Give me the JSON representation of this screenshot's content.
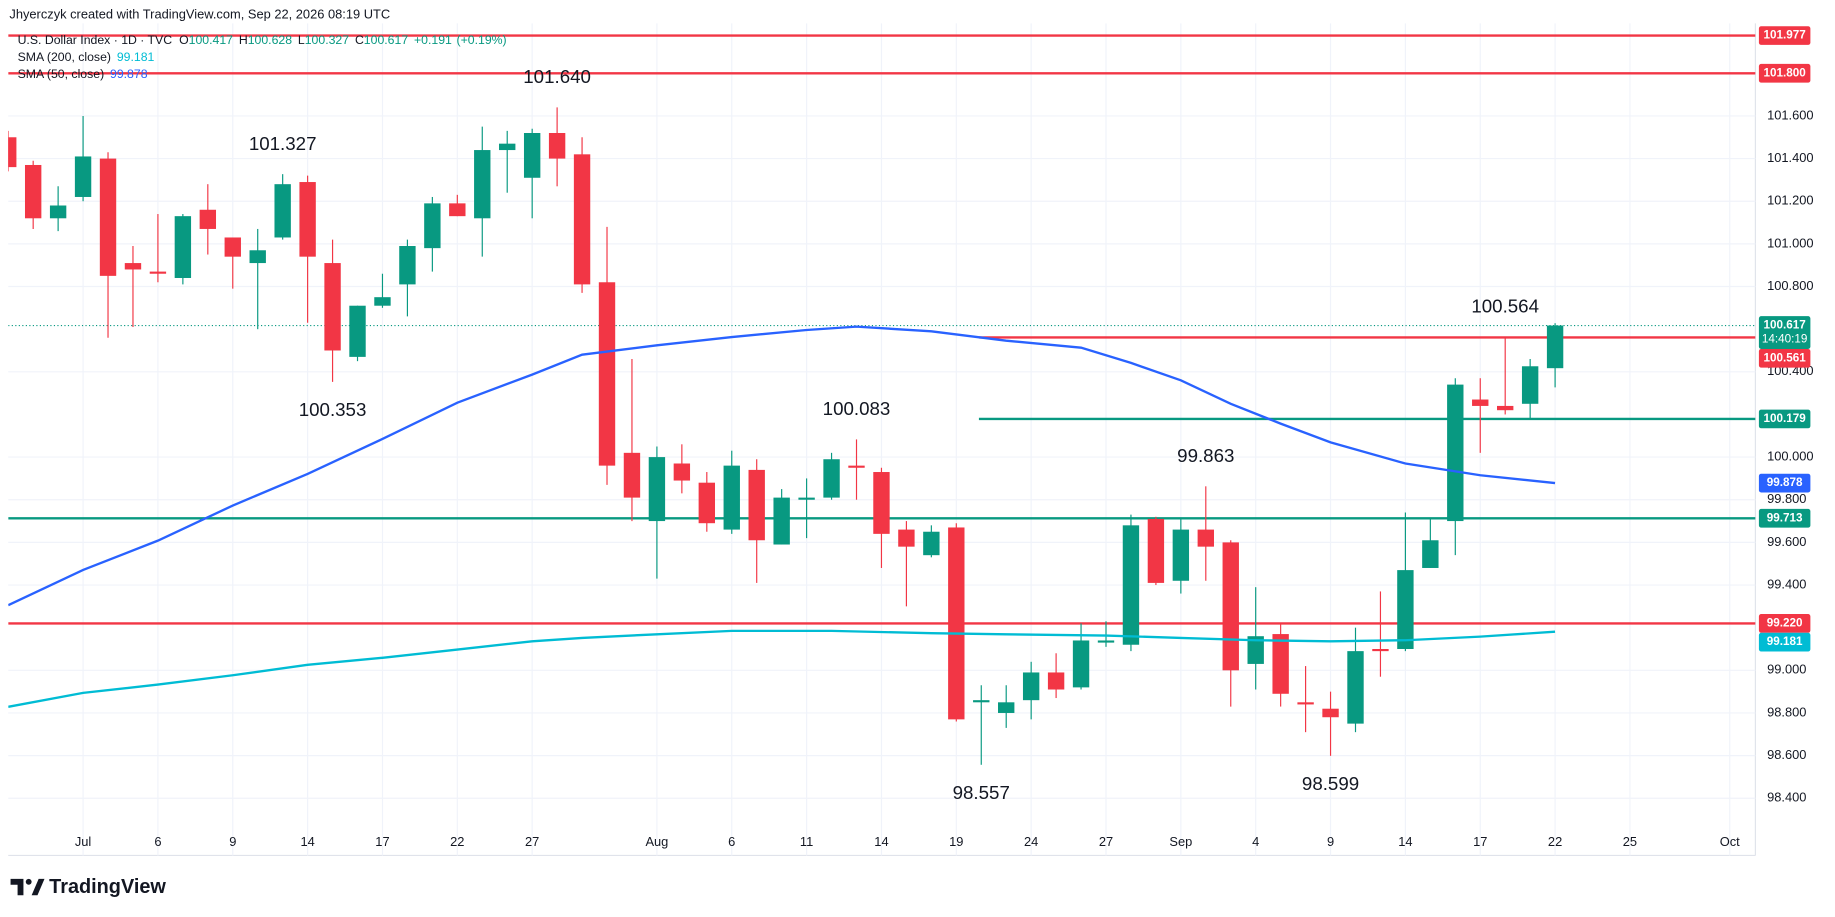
{
  "watermark": "Jhyerczyk created with TradingView.com, Sep 22, 2026 08:19 UTC",
  "brand": "TradingView",
  "chart_data": {
    "type": "candlestick",
    "title": "U.S. Dollar Index · 1D · TVC",
    "ohlc_prefixes": [
      "O",
      "H",
      "L",
      "C"
    ],
    "change": {
      "value": 0.191,
      "label": "+0.191"
    },
    "change_pct": {
      "value": 0.19,
      "label": "(+0.19%)"
    },
    "up_color": "#089981",
    "down_color": "#f23645",
    "x": [
      "2026-06-26",
      "2026-06-29",
      "2026-06-30",
      "2026-07-01",
      "2026-07-02",
      "2026-07-03",
      "2026-07-06",
      "2026-07-07",
      "2026-07-08",
      "2026-07-09",
      "2026-07-10",
      "2026-07-13",
      "2026-07-14",
      "2026-07-15",
      "2026-07-16",
      "2026-07-17",
      "2026-07-20",
      "2026-07-21",
      "2026-07-22",
      "2026-07-23",
      "2026-07-24",
      "2026-07-27",
      "2026-07-28",
      "2026-07-29",
      "2026-07-30",
      "2026-07-31",
      "2026-08-03",
      "2026-08-04",
      "2026-08-05",
      "2026-08-06",
      "2026-08-07",
      "2026-08-10",
      "2026-08-11",
      "2026-08-12",
      "2026-08-13",
      "2026-08-14",
      "2026-08-17",
      "2026-08-18",
      "2026-08-19",
      "2026-08-20",
      "2026-08-21",
      "2026-08-24",
      "2026-08-25",
      "2026-08-26",
      "2026-08-27",
      "2026-08-28",
      "2026-08-31",
      "2026-09-01",
      "2026-09-02",
      "2026-09-03",
      "2026-09-04",
      "2026-09-07",
      "2026-09-08",
      "2026-09-09",
      "2026-09-10",
      "2026-09-11",
      "2026-09-14",
      "2026-09-15",
      "2026-09-16",
      "2026-09-17",
      "2026-09-18",
      "2026-09-21",
      "2026-09-22"
    ],
    "open": [
      101.5,
      101.37,
      101.12,
      101.22,
      101.4,
      100.91,
      100.87,
      100.84,
      101.16,
      101.03,
      100.91,
      101.03,
      101.29,
      100.91,
      100.47,
      100.71,
      100.81,
      100.98,
      101.19,
      101.12,
      101.44,
      101.31,
      101.52,
      101.42,
      100.82,
      100.02,
      99.7,
      99.97,
      99.88,
      99.66,
      99.94,
      99.59,
      99.8,
      99.81,
      99.96,
      99.93,
      99.66,
      99.54,
      99.67,
      98.85,
      98.8,
      98.86,
      98.99,
      98.92,
      99.13,
      99.12,
      99.71,
      99.42,
      99.66,
      99.6,
      99.03,
      99.17,
      98.85,
      98.82,
      98.75,
      99.1,
      99.1,
      99.48,
      99.7,
      100.27,
      100.24,
      100.25,
      100.417
    ],
    "high": [
      101.53,
      101.39,
      101.27,
      101.6,
      101.43,
      100.99,
      101.14,
      101.14,
      101.28,
      101.03,
      101.07,
      101.327,
      101.32,
      101.02,
      100.71,
      100.86,
      101.02,
      101.22,
      101.23,
      101.55,
      101.53,
      101.54,
      101.64,
      101.5,
      101.08,
      100.46,
      100.05,
      100.06,
      99.93,
      100.03,
      99.99,
      99.85,
      99.9,
      100.02,
      100.083,
      99.95,
      99.7,
      99.68,
      99.69,
      98.93,
      98.93,
      99.04,
      99.08,
      99.22,
      99.23,
      99.73,
      99.72,
      99.71,
      99.863,
      99.61,
      99.39,
      99.22,
      99.02,
      98.9,
      99.2,
      99.37,
      99.74,
      99.71,
      100.37,
      100.37,
      100.564,
      100.46,
      100.628
    ],
    "low": [
      101.34,
      101.07,
      101.06,
      101.2,
      100.56,
      100.61,
      100.82,
      100.81,
      100.95,
      100.79,
      100.6,
      101.02,
      100.63,
      100.353,
      100.45,
      100.7,
      100.66,
      100.87,
      101.13,
      100.94,
      101.24,
      101.12,
      101.27,
      100.77,
      99.87,
      99.7,
      99.43,
      99.83,
      99.65,
      99.64,
      99.41,
      99.59,
      99.62,
      99.8,
      99.8,
      99.48,
      99.3,
      99.53,
      98.76,
      98.557,
      98.73,
      98.77,
      98.87,
      98.91,
      99.11,
      99.09,
      99.4,
      99.36,
      99.42,
      98.83,
      98.91,
      98.83,
      98.71,
      98.599,
      98.71,
      98.97,
      99.09,
      99.48,
      99.54,
      100.02,
      100.2,
      100.18,
      100.327
    ],
    "close": [
      101.36,
      101.12,
      101.18,
      101.41,
      100.85,
      100.88,
      100.86,
      101.13,
      101.07,
      100.94,
      100.97,
      101.28,
      100.94,
      100.5,
      100.71,
      100.75,
      100.99,
      101.19,
      101.13,
      101.44,
      101.47,
      101.52,
      101.4,
      100.81,
      99.96,
      99.81,
      100.0,
      99.89,
      99.69,
      99.96,
      99.61,
      99.81,
      99.81,
      99.99,
      99.95,
      99.64,
      99.58,
      99.65,
      98.77,
      98.86,
      98.85,
      98.99,
      98.91,
      99.14,
      99.14,
      99.68,
      99.41,
      99.66,
      99.58,
      99.0,
      99.16,
      98.89,
      98.84,
      98.78,
      99.09,
      99.09,
      99.47,
      99.61,
      100.34,
      100.24,
      100.22,
      100.426,
      100.617
    ],
    "overlays": [
      {
        "name": "SMA (200, close)",
        "color": "#00bcd4",
        "x": [
          "2026-06-26",
          "2026-07-01",
          "2026-07-06",
          "2026-07-09",
          "2026-07-14",
          "2026-07-17",
          "2026-07-22",
          "2026-07-27",
          "2026-07-29",
          "2026-08-03",
          "2026-08-06",
          "2026-08-12",
          "2026-08-18",
          "2026-08-21",
          "2026-08-27",
          "2026-09-01",
          "2026-09-04",
          "2026-09-09",
          "2026-09-14",
          "2026-09-17",
          "2026-09-22"
        ],
        "values": [
          98.829,
          98.894,
          98.933,
          98.977,
          99.026,
          99.059,
          99.097,
          99.136,
          99.152,
          99.169,
          99.185,
          99.185,
          99.174,
          99.169,
          99.163,
          99.152,
          99.141,
          99.136,
          99.141,
          99.158,
          99.181
        ]
      },
      {
        "name": "SMA (50, close)",
        "color": "#2962ff",
        "x": [
          "2026-06-26",
          "2026-07-01",
          "2026-07-06",
          "2026-07-09",
          "2026-07-14",
          "2026-07-17",
          "2026-07-22",
          "2026-07-27",
          "2026-07-29",
          "2026-08-03",
          "2026-08-06",
          "2026-08-11",
          "2026-08-13",
          "2026-08-18",
          "2026-08-21",
          "2026-08-26",
          "2026-08-28",
          "2026-09-01",
          "2026-09-03",
          "2026-09-07",
          "2026-09-09",
          "2026-09-14",
          "2026-09-17",
          "2026-09-22"
        ],
        "values": [
          99.306,
          99.471,
          99.608,
          99.773,
          99.921,
          100.085,
          100.255,
          100.387,
          100.48,
          100.524,
          100.563,
          100.596,
          100.612,
          100.59,
          100.546,
          100.513,
          100.442,
          100.36,
          100.25,
          100.157,
          100.069,
          99.97,
          99.915,
          99.878
        ]
      }
    ],
    "hlines": [
      {
        "value": 101.977,
        "color": "#f23645"
      },
      {
        "value": 101.8,
        "label": "101.800",
        "color": "#f23645"
      },
      {
        "value": 99.713,
        "color": "#089981"
      },
      {
        "value": 99.22,
        "label": "99.220",
        "color": "#f23645"
      },
      {
        "value": 100.561,
        "color": "#f23645",
        "from": "2026-08-20"
      },
      {
        "value": 100.179,
        "color": "#089981",
        "from": "2026-08-20"
      }
    ],
    "countdown": "14:40:19",
    "annotations": [
      {
        "x": "2026-07-13",
        "value": 101.327
      },
      {
        "x": "2026-07-28",
        "value": 101.64,
        "label": "101.640"
      },
      {
        "x": "2026-07-15",
        "value": 100.353
      },
      {
        "x": "2026-08-13",
        "value": 100.083
      },
      {
        "x": "2026-09-02",
        "value": 99.863
      },
      {
        "x": "2026-09-18",
        "value": 100.564
      },
      {
        "x": "2026-08-20",
        "value": 98.557
      },
      {
        "x": "2026-09-09",
        "value": 98.599
      }
    ],
    "xlim": [
      "2026-06-26",
      "2026-10-02"
    ],
    "xticks": [
      {
        "value": "2026-07-01",
        "label": "Jul"
      },
      {
        "value": "2026-07-06",
        "label": "6"
      },
      {
        "value": "2026-07-09",
        "label": "9"
      },
      {
        "value": "2026-07-14",
        "label": "14"
      },
      {
        "value": "2026-07-17",
        "label": "17"
      },
      {
        "value": "2026-07-22",
        "label": "22"
      },
      {
        "value": "2026-07-27",
        "label": "27"
      },
      {
        "value": "2026-08-03",
        "label": "Aug"
      },
      {
        "value": "2026-08-06",
        "label": "6"
      },
      {
        "value": "2026-08-11",
        "label": "11"
      },
      {
        "value": "2026-08-14",
        "label": "14"
      },
      {
        "value": "2026-08-19",
        "label": "19"
      },
      {
        "value": "2026-08-24",
        "label": "24"
      },
      {
        "value": "2026-08-27",
        "label": "27"
      },
      {
        "value": "2026-09-01",
        "label": "Sep"
      },
      {
        "value": "2026-09-04",
        "label": "4"
      },
      {
        "value": "2026-09-09",
        "label": "9"
      },
      {
        "value": "2026-09-14",
        "label": "14"
      },
      {
        "value": "2026-09-17",
        "label": "17"
      },
      {
        "value": "2026-09-22",
        "label": "22"
      },
      {
        "value": "2026-09-25",
        "label": "25"
      },
      {
        "value": "2026-10-01",
        "label": "Oct"
      }
    ],
    "ylim": [
      98.269,
      102.034
    ],
    "yticks": [
      {
        "value": 101.6,
        "label": "101.600"
      },
      {
        "value": 101.4,
        "label": "101.400"
      },
      {
        "value": 101.2,
        "label": "101.200"
      },
      {
        "value": 101.0,
        "label": "101.000"
      },
      {
        "value": 100.8,
        "label": "100.800"
      },
      {
        "value": 100.4,
        "label": "100.400"
      },
      {
        "value": 100.0,
        "label": "100.000"
      },
      {
        "value": 99.8,
        "label": "99.800"
      },
      {
        "value": 99.6,
        "label": "99.600"
      },
      {
        "value": 99.4,
        "label": "99.400"
      },
      {
        "value": 99.0,
        "label": "99.000"
      },
      {
        "value": 98.8,
        "label": "98.800"
      },
      {
        "value": 98.6,
        "label": "98.600"
      },
      {
        "value": 98.4,
        "label": "98.400"
      }
    ],
    "grid": true
  }
}
